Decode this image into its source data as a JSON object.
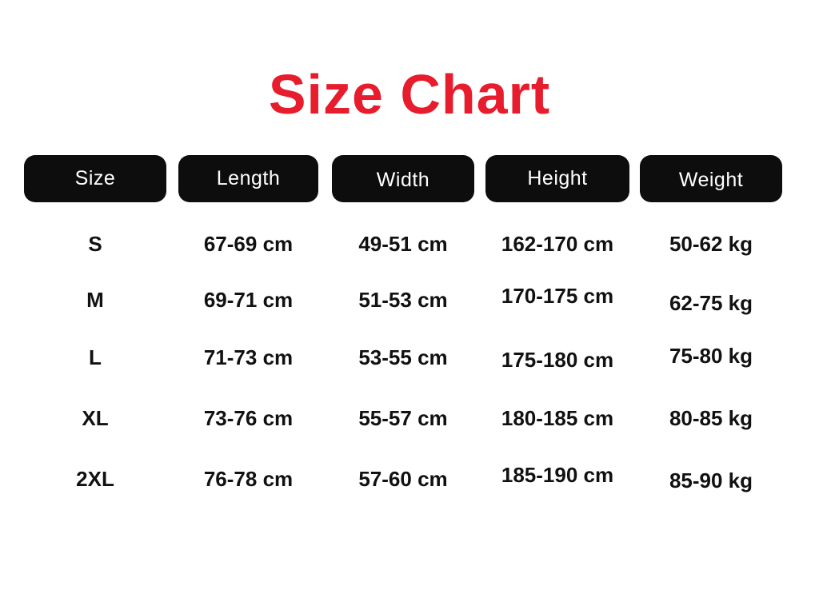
{
  "title": {
    "text": "Size Chart",
    "color": "#e71c2c"
  },
  "table": {
    "header_bg": "#0d0d0d",
    "header_text_color": "#ffffff",
    "headers": [
      "Size",
      "Length",
      "Width",
      "Height",
      "Weight"
    ],
    "rows": [
      {
        "size": "S",
        "length": "67-69 cm",
        "width": "49-51 cm",
        "height": "162-170 cm",
        "weight": "50-62 kg"
      },
      {
        "size": "M",
        "length": "69-71 cm",
        "width": "51-53 cm",
        "height": "170-175 cm",
        "weight": "62-75 kg"
      },
      {
        "size": "L",
        "length": "71-73 cm",
        "width": "53-55 cm",
        "height": "175-180 cm",
        "weight": "75-80 kg"
      },
      {
        "size": "XL",
        "length": "73-76 cm",
        "width": "55-57 cm",
        "height": "180-185 cm",
        "weight": "80-85 kg"
      },
      {
        "size": "2XL",
        "length": "76-78 cm",
        "width": "57-60 cm",
        "height": "185-190 cm",
        "weight": "85-90 kg"
      }
    ]
  },
  "chart_data": {
    "type": "table",
    "title": "Size Chart",
    "columns": [
      "Size",
      "Length",
      "Width",
      "Height",
      "Weight"
    ],
    "rows": [
      [
        "S",
        "67-69 cm",
        "49-51 cm",
        "162-170 cm",
        "50-62 kg"
      ],
      [
        "M",
        "69-71 cm",
        "51-53 cm",
        "170-175 cm",
        "62-75 kg"
      ],
      [
        "L",
        "71-73 cm",
        "53-55 cm",
        "175-180 cm",
        "75-80 kg"
      ],
      [
        "XL",
        "73-76 cm",
        "55-57 cm",
        "180-185 cm",
        "80-85 kg"
      ],
      [
        "2XL",
        "76-78 cm",
        "57-60 cm",
        "185-190 cm",
        "85-90 kg"
      ]
    ]
  }
}
